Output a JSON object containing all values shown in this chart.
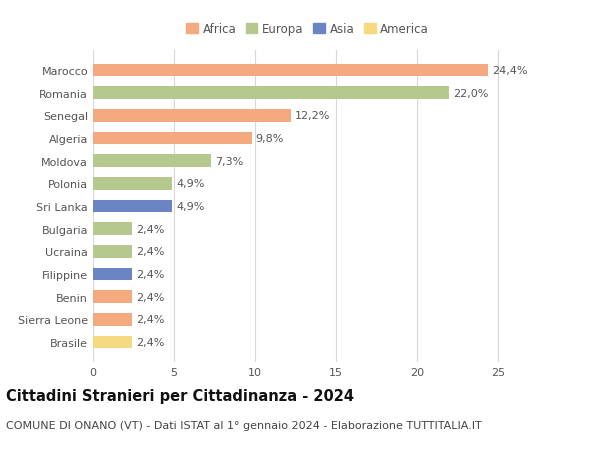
{
  "countries": [
    "Brasile",
    "Sierra Leone",
    "Benin",
    "Filippine",
    "Ucraina",
    "Bulgaria",
    "Sri Lanka",
    "Polonia",
    "Moldova",
    "Algeria",
    "Senegal",
    "Romania",
    "Marocco"
  ],
  "values": [
    2.4,
    2.4,
    2.4,
    2.4,
    2.4,
    2.4,
    4.9,
    4.9,
    7.3,
    9.8,
    12.2,
    22.0,
    24.4
  ],
  "labels": [
    "2,4%",
    "2,4%",
    "2,4%",
    "2,4%",
    "2,4%",
    "2,4%",
    "4,9%",
    "4,9%",
    "7,3%",
    "9,8%",
    "12,2%",
    "22,0%",
    "24,4%"
  ],
  "continents": [
    "America",
    "Africa",
    "Africa",
    "Asia",
    "Europa",
    "Europa",
    "Asia",
    "Europa",
    "Europa",
    "Africa",
    "Africa",
    "Europa",
    "Africa"
  ],
  "continent_colors": {
    "Africa": "#F4A97F",
    "Europa": "#B5C98E",
    "Asia": "#6B85C4",
    "America": "#F5D97E"
  },
  "legend_order": [
    "Africa",
    "Europa",
    "Asia",
    "America"
  ],
  "title": "Cittadini Stranieri per Cittadinanza - 2024",
  "subtitle": "COMUNE DI ONANO (VT) - Dati ISTAT al 1° gennaio 2024 - Elaborazione TUTTITALIA.IT",
  "xlim": [
    0,
    26.5
  ],
  "xticks": [
    0,
    5,
    10,
    15,
    20,
    25
  ],
  "background_color": "#ffffff",
  "grid_color": "#d8d8d8",
  "bar_height": 0.55,
  "title_fontsize": 10.5,
  "subtitle_fontsize": 8,
  "label_fontsize": 8,
  "tick_fontsize": 8,
  "legend_fontsize": 8.5,
  "label_color": "#555555",
  "tick_color": "#555555"
}
